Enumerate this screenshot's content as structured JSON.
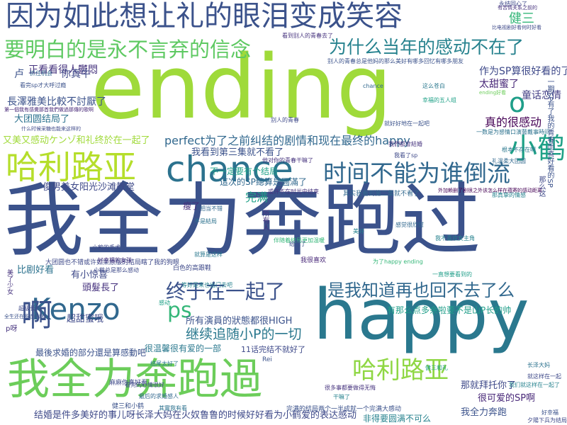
{
  "word_cloud": {
    "background": "#ffffff",
    "words": [
      {
        "text": "我全力奔跑过",
        "color": "#3b528b"
      },
      {
        "text": "ending",
        "color": "#9fda3a"
      },
      {
        "text": "happy",
        "color": "#2a788e"
      },
      {
        "text": "因为如此想让礼的眼泪变成笑容",
        "color": "#3b528b"
      },
      {
        "text": "我全力奔跑過",
        "color": "#6ccd5a"
      },
      {
        "text": "要明白的是永不言弃的信念",
        "color": "#5ec962"
      },
      {
        "text": "为什么当年的感动不在了",
        "color": "#26828e"
      },
      {
        "text": "哈利路亚",
        "color": "#b5de2b"
      },
      {
        "text": "chance",
        "color": "#2c728e"
      },
      {
        "text": "时间不能为谁倒流",
        "color": "#31688e"
      },
      {
        "text": "小鹤",
        "color": "#1fa187"
      },
      {
        "text": "Kenzo",
        "color": "#31688e"
      },
      {
        "text": "终于在一起了",
        "color": "#3b528b"
      },
      {
        "text": "是我知道再也回不去了么",
        "color": "#31688e"
      },
      {
        "text": "哈利路亚",
        "color": "#8fd744"
      },
      {
        "text": "啊",
        "color": "#3b528b"
      },
      {
        "text": "ps",
        "color": "#35b779"
      },
      {
        "text": "继续追随小P的一切",
        "color": "#2a788e"
      },
      {
        "text": "perfect为了之前纠结的剧情和现在最终的happy",
        "color": "#31688e"
      },
      {
        "text": "结婚是件多美好的事儿呀长泽大妈在火奴鲁鲁的时候好好看为小鹤爱的表达感动",
        "color": "#3e4989"
      },
      {
        "text": "o",
        "color": "#1f9e89"
      },
      {
        "text": "健三",
        "color": "#35b779"
      },
      {
        "text": "太甜蜜了",
        "color": "#482878"
      },
      {
        "text": "作为SP算很好看的了",
        "color": "#3e4989"
      },
      {
        "text": "童话恋情",
        "color": "#433e85"
      },
      {
        "text": "真的很感动",
        "color": "#440154"
      },
      {
        "text": "正看看得人鬱悶",
        "color": "#46337e"
      },
      {
        "text": "你真牛",
        "color": "#3e4989"
      },
      {
        "text": "長澤雅美比較不討厭了",
        "color": "#3b528b"
      },
      {
        "text": "大团圆结局了",
        "color": "#2c728e"
      },
      {
        "text": "又美又感动ケンゾ和礼终於在一起了",
        "color": "#a0da39"
      },
      {
        "text": "我看到第三集就不看了",
        "color": "#3b528b"
      },
      {
        "text": "不一定要有个结局",
        "color": "#1fa187"
      },
      {
        "text": "這次的SP總算是圓滿了",
        "color": "#31688e"
      },
      {
        "text": "俊男美女阳光沙滩教堂",
        "color": "#3e4989"
      },
      {
        "text": "瘦了",
        "color": "#472c7a"
      },
      {
        "text": "完满",
        "color": "#1fa187"
      },
      {
        "text": "所有演員的狀態都很HIGH",
        "color": "#3b528b"
      },
      {
        "text": "比剧好看",
        "color": "#2c728e"
      },
      {
        "text": "有小惊喜",
        "color": "#3e4989"
      },
      {
        "text": "頭髮長了",
        "color": "#46327e"
      },
      {
        "text": "超甜蜜哦",
        "color": "#3e4989"
      },
      {
        "text": "很温馨很有爱的一部",
        "color": "#2a788e"
      },
      {
        "text": "11话完结不就好了",
        "color": "#3e4989"
      },
      {
        "text": "最後求婚的部分還是算感動吧",
        "color": "#3b528b"
      },
      {
        "text": "那就拜托你了",
        "color": "#3e4989"
      },
      {
        "text": "很可爱的SP啊",
        "color": "#482878"
      },
      {
        "text": "我全力奔跑",
        "color": "#3b528b"
      },
      {
        "text": "非得要圆满不可么",
        "color": "#26828e"
      },
      {
        "text": "有那么点多余啦要不是山P长的帅",
        "color": "#1f9e89"
      },
      {
        "text": "大团圆也不错或许如果原版的结局瞎了我的狗眼",
        "color": "#3e4989"
      },
      {
        "text": "别人的青春总是他妈的那么美好有哪多回忆有哪多朋友",
        "color": "#3b528b"
      },
      {
        "text": "其实我看到第二集就不看了",
        "color": "#31688e"
      },
      {
        "text": "他对你的青春干嘛了",
        "color": "#46337e"
      },
      {
        "text": "永结同心了",
        "color": "#3e4989"
      },
      {
        "text": "看到别人的青春去了",
        "color": "#46337e"
      },
      {
        "text": "一数是为感情口演藝戴事時间",
        "color": "#2c728e"
      },
      {
        "text": "根本不存在啊",
        "color": "#2a788e"
      },
      {
        "text": "礼温柔大团圆",
        "color": "#31688e"
      },
      {
        "text": "外加赖删了剧很之外该怎么样在蕴寄的感动距离",
        "color": "#440154"
      },
      {
        "text": "长泽大妈",
        "color": "#2c728e"
      },
      {
        "text": "就这样在一起",
        "color": "#3e4989"
      },
      {
        "text": "我们就这样在一起了",
        "color": "#26828e"
      },
      {
        "text": "好幸福",
        "color": "#3b528b"
      },
      {
        "text": "夕陽下兵为结局",
        "color": "#3e4989"
      },
      {
        "text": "健三和礼",
        "color": "#1fa187"
      },
      {
        "text": "完满的结局两个一半成就一个完满大感动",
        "color": "#3b528b"
      },
      {
        "text": "干嘛了",
        "color": "#26828e"
      },
      {
        "text": "很多事都要做得无悔",
        "color": "#46337e"
      },
      {
        "text": "抓住机会",
        "color": "#31688e"
      },
      {
        "text": "看完sp才大呼过瘾",
        "color": "#3b528b"
      },
      {
        "text": "第一個我有感覺那首我們做過那傳的歌啊",
        "color": "#482878"
      },
      {
        "text": "什么时候采糖也能来这样的",
        "color": "#3e4989"
      },
      {
        "text": "伴随着结局更加温暖",
        "color": "#35b779"
      },
      {
        "text": "不是結局",
        "color": "#2c728e"
      },
      {
        "text": "小鹤的手术",
        "color": "#3e4989"
      },
      {
        "text": "chance",
        "color": "#31688e"
      },
      {
        "text": "这么苍白",
        "color": "#2a788e"
      },
      {
        "text": "幸福的五人组",
        "color": "#1fa187"
      },
      {
        "text": "就好好地在一起吧",
        "color": "#3b528b"
      },
      {
        "text": "我們都會結婚",
        "color": "#46337e"
      },
      {
        "text": "我看了sp",
        "color": "#3e4989"
      },
      {
        "text": "ending好看",
        "color": "#6ccd5a"
      },
      {
        "text": "为了happy ending",
        "color": "#35b779"
      },
      {
        "text": "感觉很欣慰",
        "color": "#31688e"
      },
      {
        "text": "我不喜欢女主角",
        "color": "#26828e"
      },
      {
        "text": "一直想要看到的",
        "color": "#1f9e89"
      },
      {
        "text": "小鹤总是那么感动",
        "color": "#3e4989"
      },
      {
        "text": "或许不在时光中结束",
        "color": "#46337e"
      },
      {
        "text": "结尾太好了",
        "color": "#2a788e"
      },
      {
        "text": "看完的心情很好",
        "color": "#3e4989"
      },
      {
        "text": "最后的求婚感人",
        "color": "#31688e"
      },
      {
        "text": "其實我有看",
        "color": "#2c728e"
      },
      {
        "text": "白色的高跟鞋",
        "color": "#3e4989"
      },
      {
        "text": "健三和小鹤",
        "color": "#3b528b"
      },
      {
        "text": "我很喜欢",
        "color": "#482878"
      },
      {
        "text": "等好是来也出门去吧",
        "color": "#26828e"
      },
      {
        "text": "感动",
        "color": "#1fa187"
      },
      {
        "text": "超级长的",
        "color": "#3e4989"
      },
      {
        "text": "全生还在多连结麻",
        "color": "#3b528b"
      },
      {
        "text": "好幸福的女孩",
        "color": "#46337e"
      },
      {
        "text": "就算是这样",
        "color": "#2a788e"
      },
      {
        "text": "别人的青春",
        "color": "#3e4989"
      },
      {
        "text": "给跑了",
        "color": "#3b528b"
      },
      {
        "text": "美好",
        "color": "#26828e"
      },
      {
        "text": "p呀",
        "color": "#46337e"
      },
      {
        "text": "卢",
        "color": "#3b528b"
      },
      {
        "text": "比电视剧好看何时好看",
        "color": "#3e4989"
      },
      {
        "text": "有苦情关系之前的",
        "color": "#46337e"
      },
      {
        "text": "一期SP有了我的青春而喜好看的SP",
        "color": "#3b528b"
      },
      {
        "text": "那么这",
        "color": "#3e4989"
      },
      {
        "text": "那真挚的情感",
        "color": "#26828e"
      },
      {
        "text": "Rei",
        "color": "#3b528b"
      },
      {
        "text": "麻麻你真好看",
        "color": "#3e4989"
      },
      {
        "text": "所有人",
        "color": "#46337e"
      },
      {
        "text": "相当不错",
        "color": "#31688e"
      },
      {
        "text": "美了少女",
        "color": "#46337e"
      }
    ]
  }
}
